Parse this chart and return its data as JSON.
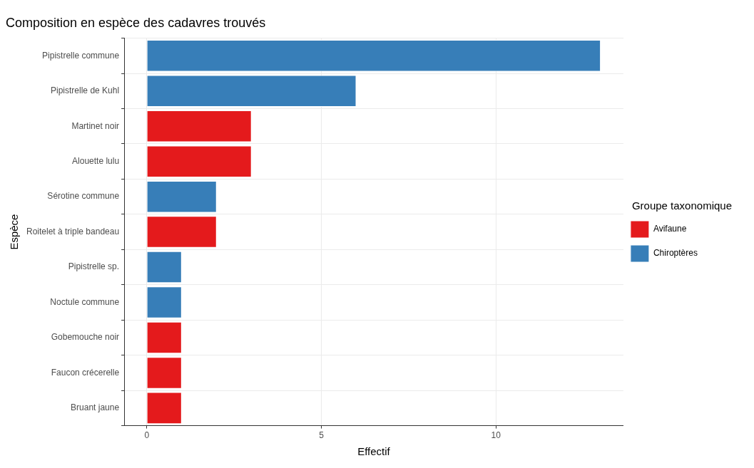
{
  "chart_data": {
    "type": "bar",
    "orientation": "horizontal",
    "stacked": true,
    "title": "Composition en espèce des cadavres trouvés",
    "xlabel": "Effectif",
    "ylabel": "Espèce",
    "legend_title": "Groupe taxonomique",
    "legend": "right",
    "grid": true,
    "categories": [
      "Pipistrelle commune",
      "Pipistrelle de Kuhl",
      "Martinet noir",
      "Alouette lulu",
      "Sérotine commune",
      "Roitelet à triple bandeau",
      "Pipistrelle sp.",
      "Noctule commune",
      "Gobemouche noir",
      "Faucon crécerelle",
      "Bruant jaune"
    ],
    "series": [
      {
        "name": "Avifaune",
        "color": "#e41a1c",
        "values": [
          null,
          null,
          3,
          3,
          null,
          2,
          null,
          null,
          1,
          1,
          1
        ]
      },
      {
        "name": "Chiroptères",
        "color": "#377eb8",
        "values": [
          13,
          6,
          null,
          null,
          2,
          null,
          1,
          1,
          null,
          null,
          null
        ]
      }
    ],
    "xlim": [
      -0.65,
      13.65
    ],
    "xticks": [
      0,
      5,
      10
    ]
  }
}
